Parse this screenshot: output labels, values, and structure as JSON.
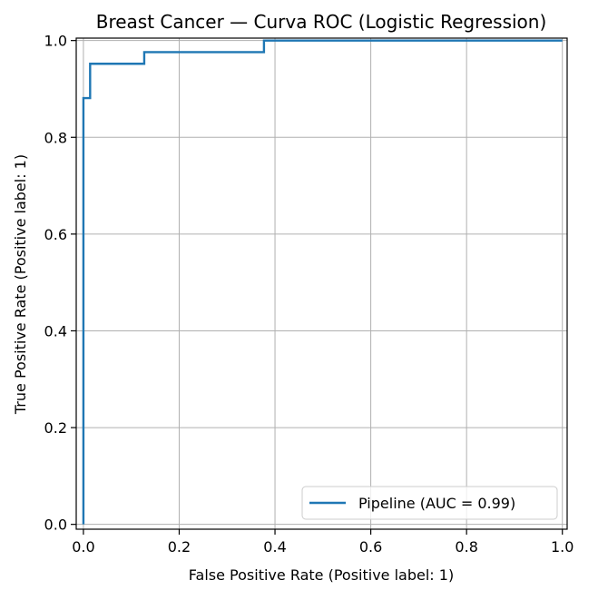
{
  "chart_data": {
    "type": "line",
    "title": "Breast Cancer — Curva ROC (Logistic Regression)",
    "xlabel": "False Positive Rate (Positive label: 1)",
    "ylabel": "True Positive Rate (Positive label: 1)",
    "xlim": [
      -0.015,
      1.01
    ],
    "ylim": [
      -0.01,
      1.005
    ],
    "x_ticks": [
      "0.0",
      "0.2",
      "0.4",
      "0.6",
      "0.8",
      "1.0"
    ],
    "y_ticks": [
      "0.0",
      "0.2",
      "0.4",
      "0.6",
      "0.8",
      "1.0"
    ],
    "grid": true,
    "legend_position": "lower-right",
    "series": [
      {
        "name": "Pipeline (AUC = 0.99)",
        "color": "#1f77b4",
        "x": [
          0.0,
          0.0,
          0.0,
          0.014,
          0.014,
          0.127,
          0.127,
          0.377,
          0.377,
          1.0
        ],
        "y": [
          0.0,
          0.0,
          0.881,
          0.881,
          0.952,
          0.952,
          0.976,
          0.976,
          1.0,
          1.0
        ]
      }
    ]
  }
}
